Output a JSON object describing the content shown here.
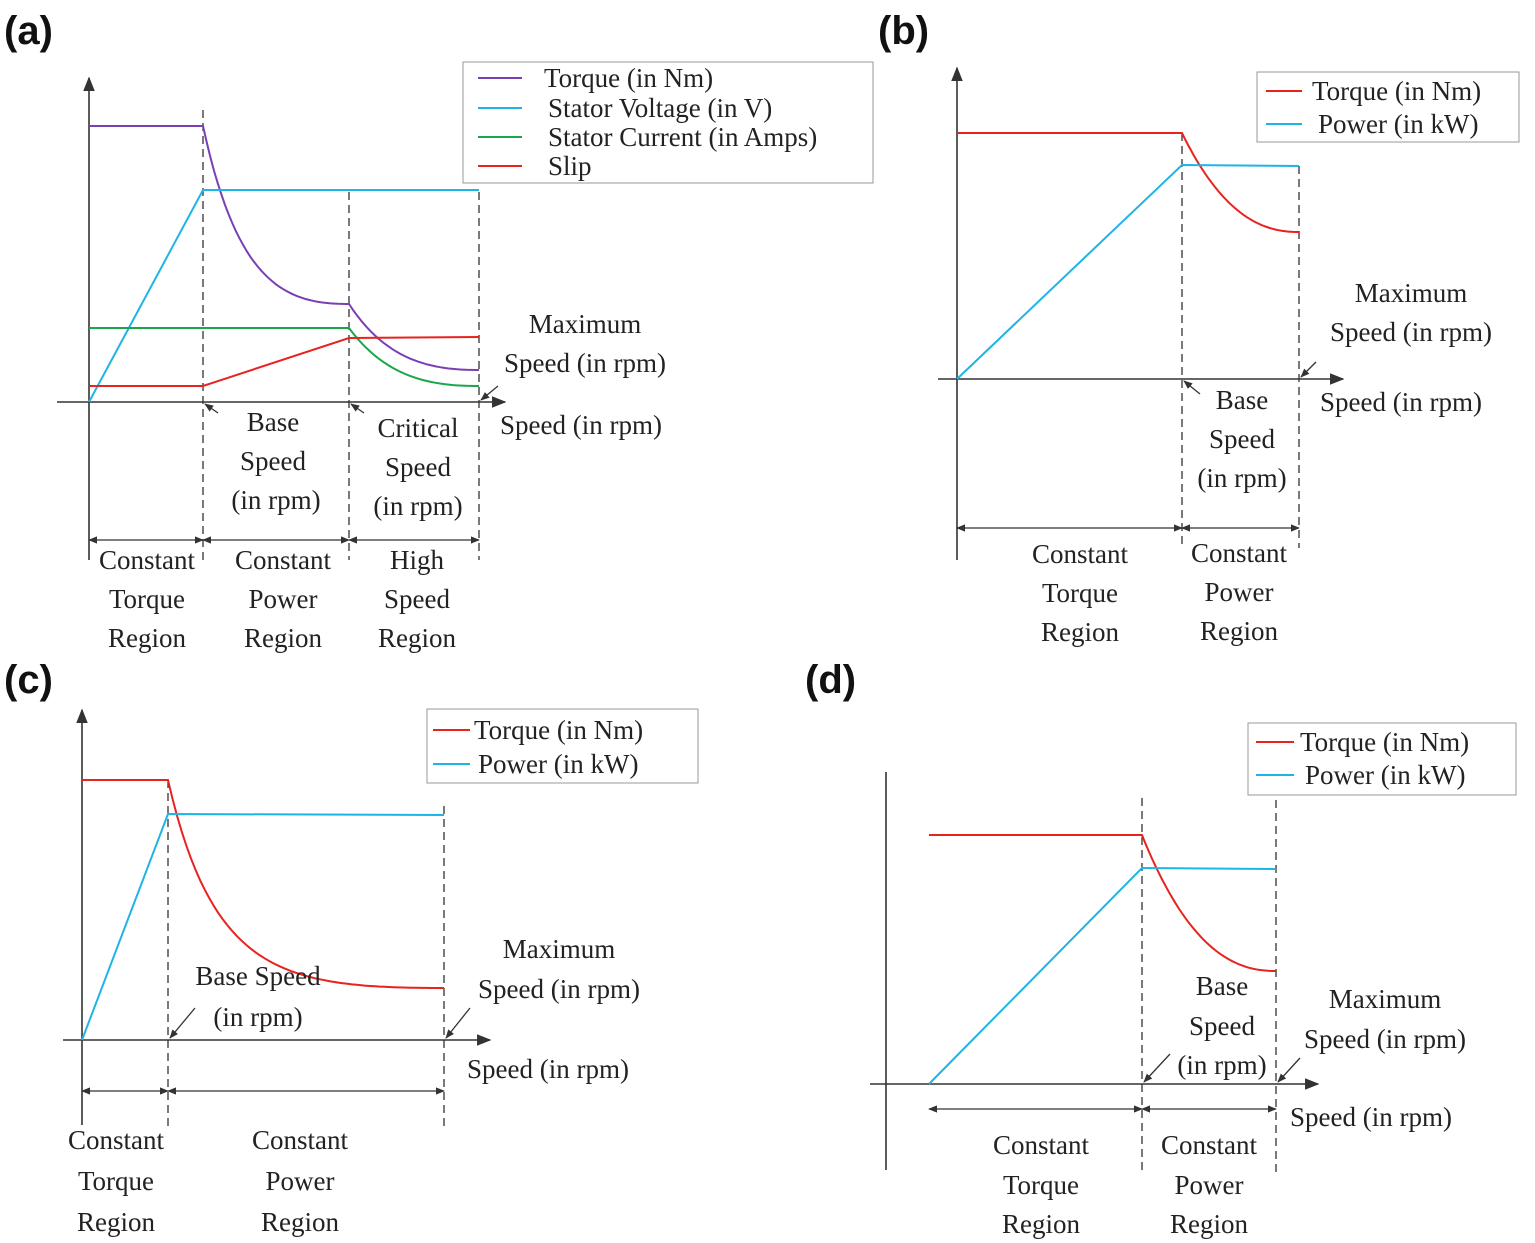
{
  "panels": [
    {
      "letter": "(a)"
    },
    {
      "letter": "(b)"
    },
    {
      "letter": "(c)"
    },
    {
      "letter": "(d)"
    }
  ],
  "colors": {
    "torque_a": "#7b3fb5",
    "torque": "#e8231e",
    "voltage": "#1fb4e6",
    "current": "#1aa64a",
    "slip": "#e8231e",
    "power": "#1fb4e6"
  },
  "chart_data": [
    {
      "panel": "(a)",
      "type": "line",
      "xlabel": "Speed (in rpm)",
      "ylabel": "",
      "legend_position": "top-right",
      "series": [
        {
          "name": "Torque (in Nm)"
        },
        {
          "name": "Stator Voltage (in V)"
        },
        {
          "name": "Stator Current (in Amps)"
        },
        {
          "name": "Slip"
        }
      ],
      "annotations": {
        "base": [
          "Base",
          "Speed",
          "(in rpm)"
        ],
        "critical": [
          "Critical",
          "Speed",
          "(in rpm)"
        ],
        "maximum": [
          "Maximum",
          "Speed (in rpm)"
        ]
      },
      "regions": [
        [
          "Constant",
          "Torque",
          "Region"
        ],
        [
          "Constant",
          "Power",
          "Region"
        ],
        [
          "High",
          "Speed",
          "Region"
        ]
      ]
    },
    {
      "panel": "(b)",
      "type": "line",
      "xlabel": "Speed (in rpm)",
      "ylabel": "",
      "legend_position": "top-right",
      "series": [
        {
          "name": "Torque (in Nm)"
        },
        {
          "name": "Power (in kW)"
        }
      ],
      "annotations": {
        "base": [
          "Base",
          "Speed",
          "(in rpm)"
        ],
        "maximum": [
          "Maximum",
          "Speed (in rpm)"
        ]
      },
      "regions": [
        [
          "Constant",
          "Torque",
          "Region"
        ],
        [
          "Constant",
          "Power",
          "Region"
        ]
      ]
    },
    {
      "panel": "(c)",
      "type": "line",
      "xlabel": "Speed (in rpm)",
      "ylabel": "",
      "legend_position": "top-right",
      "series": [
        {
          "name": "Torque (in Nm)"
        },
        {
          "name": "Power (in kW)"
        }
      ],
      "annotations": {
        "base": [
          "Base Speed",
          "(in rpm)"
        ],
        "maximum": [
          "Maximum",
          "Speed (in rpm)"
        ]
      },
      "regions": [
        [
          "Constant",
          "Torque",
          "Region"
        ],
        [
          "Constant",
          "Power",
          "Region"
        ]
      ]
    },
    {
      "panel": "(d)",
      "type": "line",
      "xlabel": "Speed (in rpm)",
      "ylabel": "",
      "legend_position": "top-right",
      "series": [
        {
          "name": "Torque (in Nm)"
        },
        {
          "name": "Power (in kW)"
        }
      ],
      "annotations": {
        "base": [
          "Base",
          "Speed",
          "(in rpm)"
        ],
        "maximum": [
          "Maximum",
          "Speed (in rpm)"
        ]
      },
      "regions": [
        [
          "Constant",
          "Torque",
          "Region"
        ],
        [
          "Constant",
          "Power",
          "Region"
        ]
      ]
    }
  ]
}
